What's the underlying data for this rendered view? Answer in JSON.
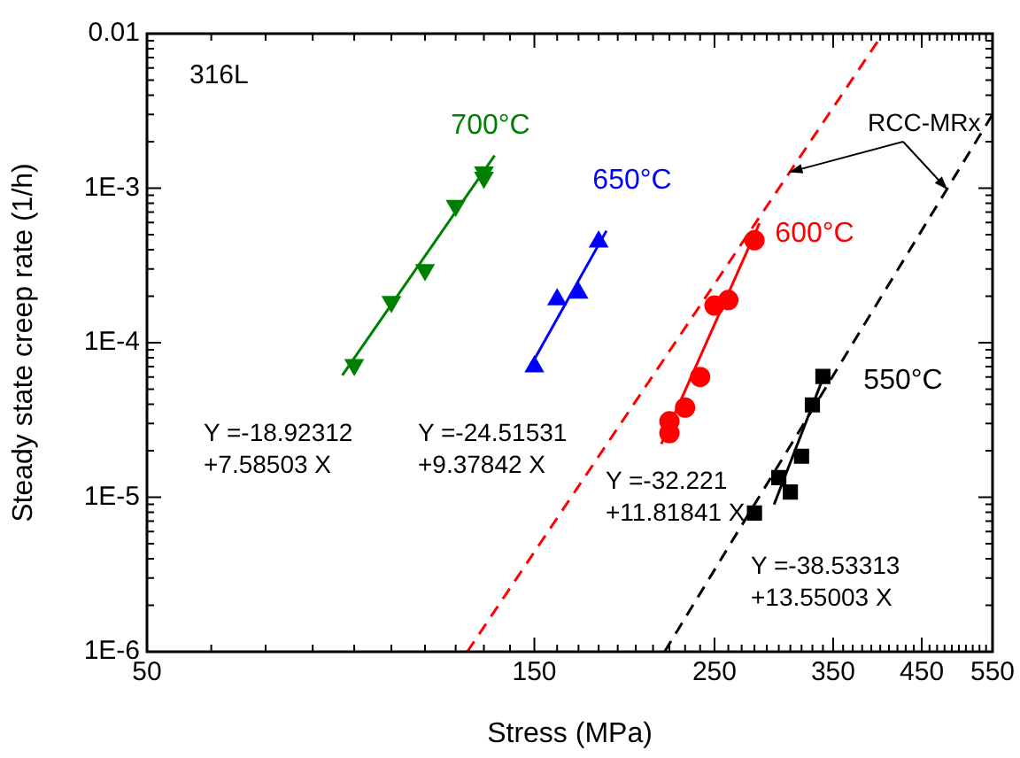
{
  "chart_data": {
    "type": "scatter",
    "xlabel": "Stress (MPa)",
    "ylabel": "Steady state creep rate (1/h)",
    "log": "xy",
    "grid": false,
    "xlim": [
      50,
      550
    ],
    "ylim": [
      1e-06,
      0.01
    ],
    "xticks": [
      50,
      {
        "value": 60,
        "label": null
      },
      {
        "value": 70,
        "label": null
      },
      {
        "value": 80,
        "label": null
      },
      {
        "value": 90,
        "label": null
      },
      {
        "value": 100,
        "label": null
      },
      {
        "value": 110,
        "label": null
      },
      {
        "value": 120,
        "label": null
      },
      {
        "value": 130,
        "label": null
      },
      {
        "value": 140,
        "label": null
      },
      150,
      {
        "value": 160,
        "label": null
      },
      {
        "value": 170,
        "label": null
      },
      {
        "value": 180,
        "label": null
      },
      {
        "value": 190,
        "label": null
      },
      {
        "value": 200,
        "label": null
      },
      {
        "value": 210,
        "label": null
      },
      {
        "value": 220,
        "label": null
      },
      {
        "value": 230,
        "label": null
      },
      {
        "value": 240,
        "label": null
      },
      250,
      {
        "value": 260,
        "label": null
      },
      {
        "value": 270,
        "label": null
      },
      {
        "value": 280,
        "label": null
      },
      {
        "value": 290,
        "label": null
      },
      {
        "value": 300,
        "label": null
      },
      {
        "value": 310,
        "label": null
      },
      {
        "value": 320,
        "label": null
      },
      {
        "value": 330,
        "label": null
      },
      {
        "value": 340,
        "label": null
      },
      350,
      {
        "value": 360,
        "label": null
      },
      {
        "value": 370,
        "label": null
      },
      {
        "value": 380,
        "label": null
      },
      {
        "value": 390,
        "label": null
      },
      {
        "value": 400,
        "label": null
      },
      {
        "value": 410,
        "label": null
      },
      {
        "value": 420,
        "label": null
      },
      {
        "value": 430,
        "label": null
      },
      {
        "value": 440,
        "label": null
      },
      450,
      {
        "value": 460,
        "label": null
      },
      {
        "value": 470,
        "label": null
      },
      {
        "value": 480,
        "label": null
      },
      {
        "value": 490,
        "label": null
      },
      {
        "value": 500,
        "label": null
      },
      {
        "value": 510,
        "label": null
      },
      {
        "value": 520,
        "label": null
      },
      {
        "value": 530,
        "label": null
      },
      {
        "value": 540,
        "label": null
      },
      550
    ],
    "yticks": [
      {
        "value": 1e-06,
        "label": "1E-6"
      },
      {
        "value": 2e-06,
        "label": null
      },
      {
        "value": 3e-06,
        "label": null
      },
      {
        "value": 4e-06,
        "label": null
      },
      {
        "value": 5e-06,
        "label": null
      },
      {
        "value": 6e-06,
        "label": null
      },
      {
        "value": 7e-06,
        "label": null
      },
      {
        "value": 8e-06,
        "label": null
      },
      {
        "value": 9e-06,
        "label": null
      },
      {
        "value": 1e-05,
        "label": "1E-5"
      },
      {
        "value": 2e-05,
        "label": null
      },
      {
        "value": 3e-05,
        "label": null
      },
      {
        "value": 4e-05,
        "label": null
      },
      {
        "value": 5e-05,
        "label": null
      },
      {
        "value": 6e-05,
        "label": null
      },
      {
        "value": 7e-05,
        "label": null
      },
      {
        "value": 8e-05,
        "label": null
      },
      {
        "value": 9e-05,
        "label": null
      },
      {
        "value": 0.0001,
        "label": "1E-4"
      },
      {
        "value": 0.0002,
        "label": null
      },
      {
        "value": 0.0003,
        "label": null
      },
      {
        "value": 0.0004,
        "label": null
      },
      {
        "value": 0.0005,
        "label": null
      },
      {
        "value": 0.0006,
        "label": null
      },
      {
        "value": 0.0007,
        "label": null
      },
      {
        "value": 0.0008,
        "label": null
      },
      {
        "value": 0.0009,
        "label": null
      },
      {
        "value": 0.001,
        "label": "1E-3"
      },
      {
        "value": 0.002,
        "label": null
      },
      {
        "value": 0.003,
        "label": null
      },
      {
        "value": 0.004,
        "label": null
      },
      {
        "value": 0.005,
        "label": null
      },
      {
        "value": 0.006,
        "label": null
      },
      {
        "value": 0.007,
        "label": null
      },
      {
        "value": 0.008,
        "label": null
      },
      {
        "value": 0.009,
        "label": null
      },
      0.01
    ],
    "series": [
      {
        "name": "700°C",
        "marker": "triangle-down",
        "color": "#008000",
        "x": [
          90,
          100,
          110,
          120,
          130,
          130
        ],
        "values": [
          7.2e-05,
          0.000184,
          0.000296,
          0.00077,
          0.00117,
          0.00127
        ]
      },
      {
        "name": "650°C",
        "marker": "triangle",
        "color": "#0000ff",
        "x": [
          150,
          160,
          170,
          180
        ],
        "values": [
          7e-05,
          0.00019,
          0.00021,
          0.00045
        ]
      },
      {
        "name": "600°C",
        "marker": "circle",
        "color": "#ff0000",
        "x": [
          220,
          220,
          230,
          240,
          250,
          260,
          280
        ],
        "values": [
          2.6e-05,
          3.1e-05,
          3.8e-05,
          6e-05,
          0.000174,
          0.000189,
          0.00046
        ]
      },
      {
        "name": "550°C",
        "marker": "square",
        "color": "#000000",
        "x": [
          280,
          300,
          310,
          320,
          330,
          340
        ],
        "values": [
          7.9e-06,
          1.34e-05,
          1.08e-05,
          1.84e-05,
          3.96e-05,
          6.05e-05
        ]
      },
      {
        "type": "line",
        "marker": "none",
        "line_style": "solid",
        "color": "#008000",
        "x": [
          87,
          134
        ],
        "values": [
          6.14e-05,
          0.001625
        ]
      },
      {
        "type": "line",
        "marker": "none",
        "line_style": "solid",
        "color": "#0000ff",
        "x": [
          149,
          184
        ],
        "values": [
          7.34e-05,
          0.00053
        ]
      },
      {
        "type": "line",
        "marker": "none",
        "line_style": "solid",
        "color": "#ff0000",
        "x": [
          215,
          284
        ],
        "values": [
          2.21e-05,
          0.000593
        ]
      },
      {
        "type": "line",
        "marker": "none",
        "line_style": "solid",
        "color": "#000000",
        "x": [
          296,
          343
        ],
        "values": [
          8.97e-06,
          6.62e-05
        ]
      },
      {
        "type": "line",
        "marker": "none",
        "line_style": "dashed",
        "color": "#ff0000",
        "x": [
          124,
          403
        ],
        "values": [
          1e-06,
          0.01
        ]
      },
      {
        "type": "line",
        "marker": "none",
        "line_style": "dashed",
        "color": "#000000",
        "x": [
          217,
          550
        ],
        "values": [
          1e-06,
          0.003
        ]
      }
    ],
    "annotations": [
      "316L",
      {
        "text": "RCC-MRx",
        "x": 309,
        "y": 0.00127
      },
      "Y =-18.92312",
      "+7.58503 X",
      "Y =-24.51531",
      "+9.37842 X",
      "Y =-32.221",
      "+11.81841 X",
      "Y =-38.53313",
      "+13.55003 X"
    ]
  }
}
